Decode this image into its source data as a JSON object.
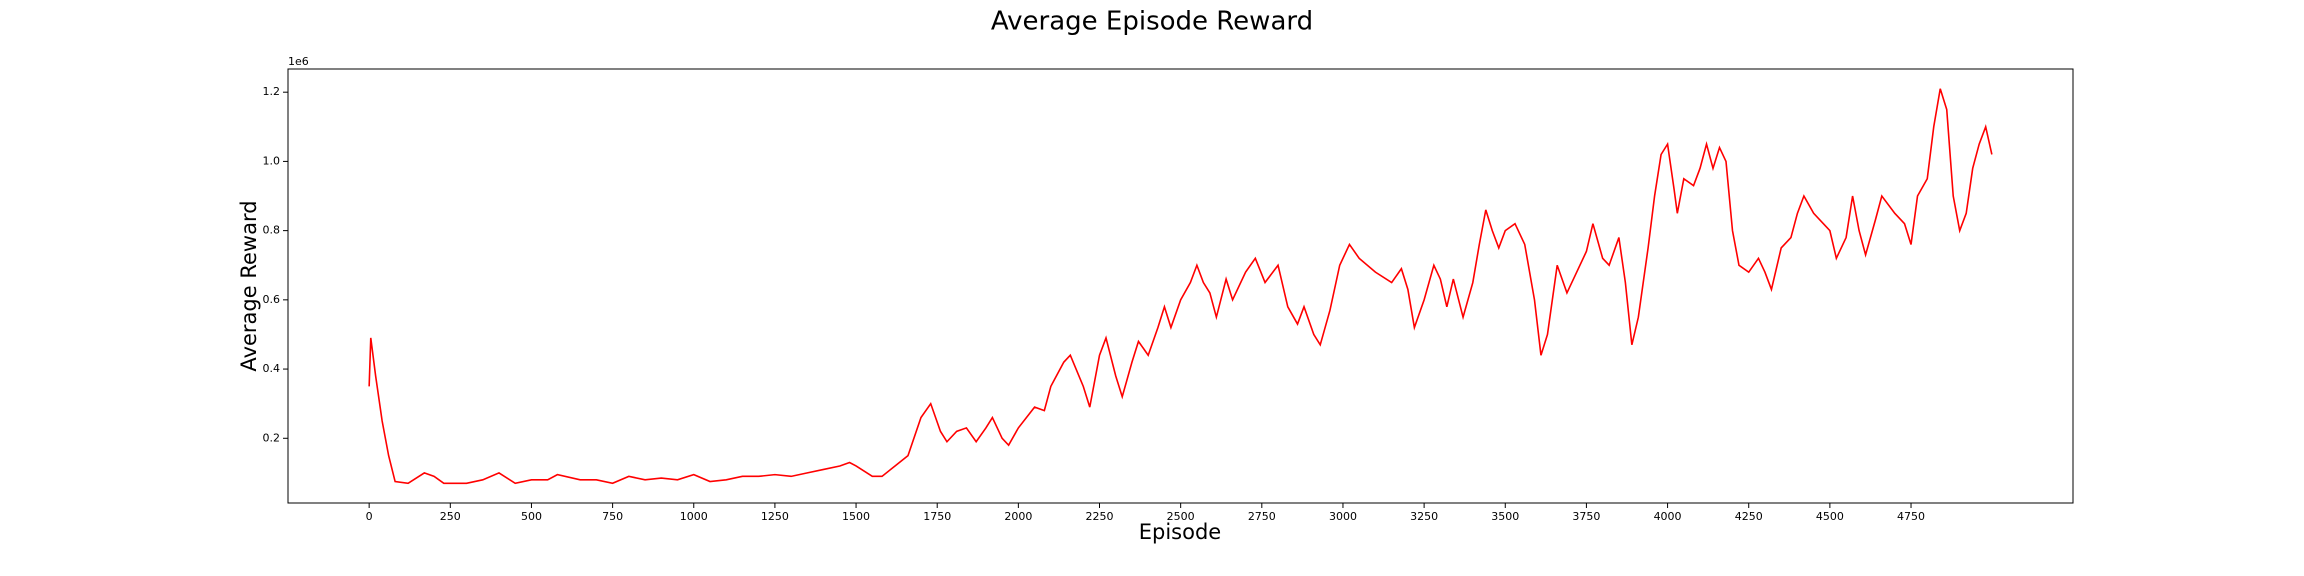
{
  "chart_data": {
    "type": "line",
    "title": "Average Episode Reward",
    "x_label": "Episode",
    "y_label": "Average Reward",
    "y_offset_label": "1e6",
    "x": [
      0,
      5,
      20,
      40,
      60,
      80,
      120,
      170,
      200,
      230,
      300,
      350,
      400,
      450,
      500,
      550,
      580,
      650,
      700,
      750,
      800,
      850,
      900,
      950,
      1000,
      1050,
      1100,
      1150,
      1200,
      1250,
      1300,
      1350,
      1400,
      1450,
      1480,
      1500,
      1550,
      1580,
      1620,
      1660,
      1700,
      1730,
      1760,
      1780,
      1810,
      1840,
      1870,
      1900,
      1920,
      1950,
      1970,
      2000,
      2050,
      2080,
      2100,
      2140,
      2160,
      2200,
      2220,
      2250,
      2270,
      2300,
      2320,
      2350,
      2370,
      2400,
      2430,
      2450,
      2470,
      2500,
      2530,
      2550,
      2570,
      2590,
      2610,
      2640,
      2660,
      2700,
      2730,
      2760,
      2800,
      2830,
      2860,
      2880,
      2910,
      2930,
      2960,
      2990,
      3020,
      3050,
      3100,
      3150,
      3180,
      3200,
      3220,
      3250,
      3280,
      3300,
      3320,
      3340,
      3370,
      3400,
      3420,
      3440,
      3460,
      3480,
      3500,
      3530,
      3560,
      3590,
      3610,
      3630,
      3660,
      3690,
      3720,
      3750,
      3770,
      3800,
      3820,
      3850,
      3870,
      3890,
      3910,
      3940,
      3960,
      3980,
      4000,
      4020,
      4030,
      4050,
      4080,
      4100,
      4120,
      4140,
      4160,
      4180,
      4200,
      4220,
      4250,
      4280,
      4300,
      4320,
      4350,
      4380,
      4400,
      4420,
      4450,
      4480,
      4500,
      4520,
      4550,
      4570,
      4590,
      4610,
      4640,
      4660,
      4700,
      4730,
      4750,
      4770,
      4800,
      4820,
      4840,
      4860,
      4880,
      4900,
      4920,
      4940,
      4960,
      4980,
      4999
    ],
    "series": [
      {
        "name": "Average Reward",
        "color": "#ff0000",
        "values": [
          0.35,
          0.49,
          0.38,
          0.25,
          0.15,
          0.075,
          0.07,
          0.1,
          0.09,
          0.07,
          0.07,
          0.08,
          0.1,
          0.07,
          0.08,
          0.08,
          0.095,
          0.08,
          0.08,
          0.07,
          0.09,
          0.08,
          0.085,
          0.08,
          0.095,
          0.075,
          0.08,
          0.09,
          0.09,
          0.095,
          0.09,
          0.1,
          0.11,
          0.12,
          0.13,
          0.12,
          0.09,
          0.09,
          0.12,
          0.15,
          0.26,
          0.3,
          0.22,
          0.19,
          0.22,
          0.23,
          0.19,
          0.23,
          0.26,
          0.2,
          0.18,
          0.23,
          0.29,
          0.28,
          0.35,
          0.42,
          0.44,
          0.35,
          0.29,
          0.44,
          0.49,
          0.38,
          0.32,
          0.42,
          0.48,
          0.44,
          0.52,
          0.58,
          0.52,
          0.6,
          0.65,
          0.7,
          0.65,
          0.62,
          0.55,
          0.66,
          0.6,
          0.68,
          0.72,
          0.65,
          0.7,
          0.58,
          0.53,
          0.58,
          0.5,
          0.47,
          0.57,
          0.7,
          0.76,
          0.72,
          0.68,
          0.65,
          0.69,
          0.63,
          0.52,
          0.6,
          0.7,
          0.66,
          0.58,
          0.66,
          0.55,
          0.65,
          0.76,
          0.86,
          0.8,
          0.75,
          0.8,
          0.82,
          0.76,
          0.6,
          0.44,
          0.5,
          0.7,
          0.62,
          0.68,
          0.74,
          0.82,
          0.72,
          0.7,
          0.78,
          0.65,
          0.47,
          0.55,
          0.75,
          0.9,
          1.02,
          1.05,
          0.92,
          0.85,
          0.95,
          0.93,
          0.98,
          1.05,
          0.98,
          1.04,
          1.0,
          0.8,
          0.7,
          0.68,
          0.72,
          0.68,
          0.63,
          0.75,
          0.78,
          0.85,
          0.9,
          0.85,
          0.82,
          0.8,
          0.72,
          0.78,
          0.9,
          0.8,
          0.73,
          0.83,
          0.9,
          0.85,
          0.82,
          0.76,
          0.9,
          0.95,
          1.1,
          1.21,
          1.15,
          0.9,
          0.8,
          0.85,
          0.98,
          1.05,
          1.1,
          1.02
        ]
      }
    ],
    "xlim": [
      -250,
      5249
    ],
    "ylim": [
      0.013,
      1.267
    ],
    "xticks": [
      0,
      250,
      500,
      750,
      1000,
      1250,
      1500,
      1750,
      2000,
      2250,
      2500,
      2750,
      3000,
      3250,
      3500,
      3750,
      4000,
      4250,
      4500,
      4750
    ],
    "yticks": [
      0.2,
      0.4,
      0.6,
      0.8,
      {
        "value": 1,
        "label": "1.0"
      },
      1.2
    ]
  }
}
